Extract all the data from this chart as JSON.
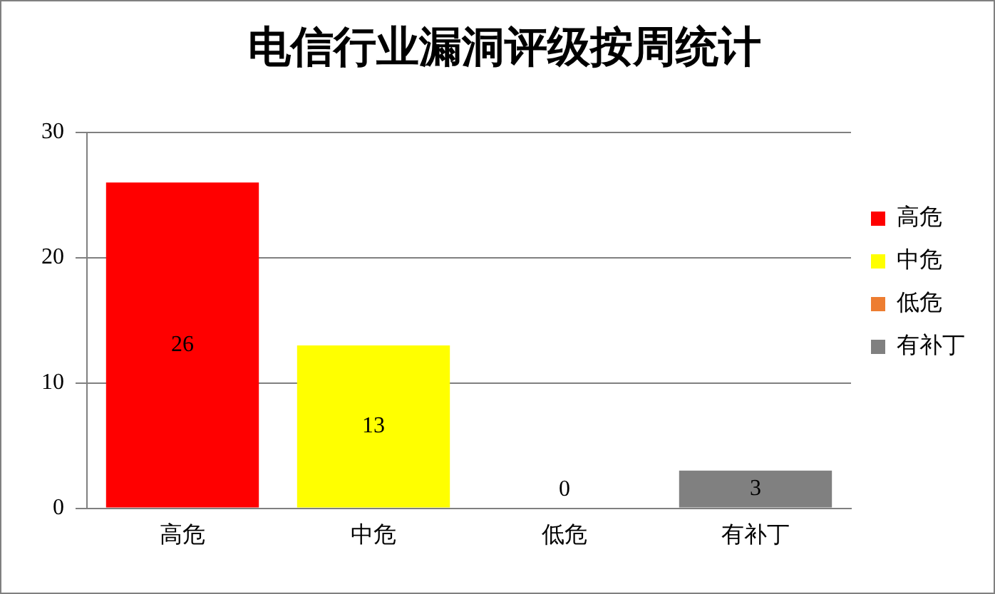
{
  "chart_data": {
    "type": "bar",
    "title": "电信行业漏洞评级按周统计",
    "categories": [
      "高危",
      "中危",
      "低危",
      "有补丁"
    ],
    "series": [
      {
        "name": "高危",
        "color": "#ff0000",
        "values": [
          26,
          null,
          null,
          null
        ]
      },
      {
        "name": "中危",
        "color": "#ffff00",
        "values": [
          null,
          13,
          null,
          null
        ]
      },
      {
        "name": "低危",
        "color": "#ed7d31",
        "values": [
          null,
          null,
          0,
          null
        ]
      },
      {
        "name": "有补丁",
        "color": "#808080",
        "values": [
          null,
          null,
          null,
          3
        ]
      }
    ],
    "ylim": [
      0,
      30
    ],
    "yticks": [
      0,
      10,
      20,
      30
    ],
    "grid": "y",
    "legend": "right",
    "data_labels": true
  }
}
